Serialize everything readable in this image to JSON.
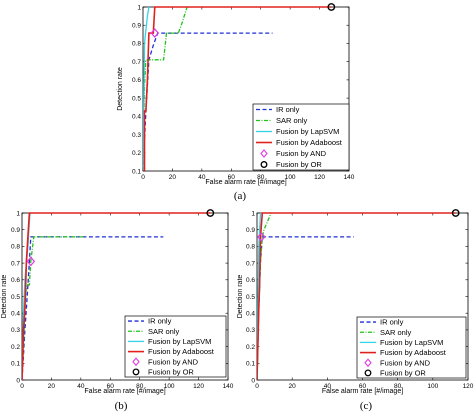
{
  "legend_labels": [
    "IR only",
    "SAR only",
    "Fusion by LapSVM",
    "Fusion by Adaboost",
    "Fusion by AND",
    "Fusion by OR"
  ],
  "colors": {
    "ir": "#1f2fd6",
    "sar": "#22c21a",
    "lapsvm": "#33d4e8",
    "adaboost": "#e0201c",
    "and": "#e03ce0",
    "or": "#000000"
  },
  "chart_data": [
    {
      "type": "line",
      "caption": "(a)",
      "xlabel": "False alarm rate [#/image]",
      "ylabel": "Detection rate",
      "xlim": [
        0,
        140
      ],
      "ylim": [
        0.1,
        1
      ],
      "x_ticks": [
        "0",
        "20",
        "40",
        "60",
        "80",
        "100",
        "120",
        "140"
      ],
      "y_ticks": [
        "0.1",
        "0.2",
        "0.3",
        "0.4",
        "0.5",
        "0.6",
        "0.7",
        "0.8",
        "0.9",
        "1"
      ],
      "grid": false,
      "legend_position": "bottom-right",
      "series": [
        {
          "name": "IR only",
          "style": "dashed",
          "x": [
            0,
            2,
            4,
            7,
            10,
            88
          ],
          "y": [
            0.1,
            0.43,
            0.71,
            0.79,
            0.857,
            0.857
          ]
        },
        {
          "name": "SAR only",
          "style": "dashdot",
          "x": [
            0,
            1,
            2,
            10,
            14,
            16,
            24,
            26,
            30
          ],
          "y": [
            0.1,
            0.57,
            0.71,
            0.71,
            0.71,
            0.857,
            0.857,
            0.9,
            1.0
          ]
        },
        {
          "name": "Fusion by LapSVM",
          "style": "solid",
          "x": [
            0,
            1,
            3,
            4
          ],
          "y": [
            0.1,
            0.8,
            0.95,
            1.0
          ]
        },
        {
          "name": "Fusion by Adaboost",
          "style": "solid",
          "x": [
            0,
            1,
            1,
            2,
            3,
            4,
            6,
            7,
            8,
            10,
            128
          ],
          "y": [
            0.1,
            0.1,
            0.43,
            0.43,
            0.6,
            0.857,
            0.857,
            0.857,
            1.0,
            1.0,
            1.0
          ]
        },
        {
          "name": "Fusion by AND",
          "marker": "diamond",
          "x": [
            8
          ],
          "y": [
            0.857
          ]
        },
        {
          "name": "Fusion by OR",
          "marker": "circle",
          "x": [
            128
          ],
          "y": [
            1.0
          ]
        }
      ]
    },
    {
      "type": "line",
      "caption": "(b)",
      "xlabel": "False alarm rate [#/image]",
      "ylabel": "Detection rate",
      "xlim": [
        0,
        140
      ],
      "ylim": [
        0,
        1
      ],
      "x_ticks": [
        "0",
        "20",
        "40",
        "60",
        "80",
        "100",
        "120",
        "140"
      ],
      "y_ticks": [
        "0",
        "0.1",
        "0.2",
        "0.3",
        "0.4",
        "0.5",
        "0.6",
        "0.7",
        "0.8",
        "0.9",
        "1"
      ],
      "grid": false,
      "legend_position": "bottom-right",
      "series": [
        {
          "name": "IR only",
          "style": "dashed",
          "x": [
            0,
            1,
            2,
            3,
            4,
            5,
            6,
            96
          ],
          "y": [
            0,
            0.15,
            0.3,
            0.43,
            0.57,
            0.71,
            0.857,
            0.857
          ]
        },
        {
          "name": "SAR only",
          "style": "dashdot",
          "x": [
            0,
            1,
            2,
            3,
            5,
            6,
            8,
            42
          ],
          "y": [
            0,
            0.2,
            0.43,
            0.57,
            0.57,
            0.71,
            0.857,
            0.857
          ]
        },
        {
          "name": "Fusion by LapSVM",
          "style": "solid",
          "x": [
            0,
            1,
            2,
            4,
            5,
            5.5
          ],
          "y": [
            0,
            0.4,
            0.6,
            0.8,
            0.95,
            1.0
          ]
        },
        {
          "name": "Fusion by Adaboost",
          "style": "solid",
          "x": [
            0,
            1,
            2,
            2.5,
            3,
            4,
            5,
            128
          ],
          "y": [
            0,
            0.29,
            0.43,
            0.57,
            0.71,
            0.857,
            1.0,
            1.0
          ]
        },
        {
          "name": "Fusion by AND",
          "marker": "diamond",
          "x": [
            6
          ],
          "y": [
            0.71
          ]
        },
        {
          "name": "Fusion by OR",
          "marker": "circle",
          "x": [
            128
          ],
          "y": [
            1.0
          ]
        }
      ]
    },
    {
      "type": "line",
      "caption": "(c)",
      "xlabel": "False alarm rate [#/image]",
      "ylabel": "Detection rate",
      "xlim": [
        0,
        120
      ],
      "ylim": [
        0,
        1
      ],
      "x_ticks": [
        "0",
        "20",
        "40",
        "60",
        "80",
        "100",
        "120"
      ],
      "y_ticks": [
        "0",
        "0.1",
        "0.2",
        "0.3",
        "0.4",
        "0.5",
        "0.6",
        "0.7",
        "0.8",
        "0.9",
        "1"
      ],
      "grid": false,
      "legend_position": "bottom-right",
      "series": [
        {
          "name": "IR only",
          "style": "dashed",
          "x": [
            0,
            1,
            2,
            3,
            55
          ],
          "y": [
            0,
            0.43,
            0.71,
            0.857,
            0.857
          ]
        },
        {
          "name": "SAR only",
          "style": "dashdot",
          "x": [
            0,
            1,
            2,
            3,
            4,
            6,
            8
          ],
          "y": [
            0,
            0.43,
            0.71,
            0.857,
            0.9,
            0.95,
            1.0
          ]
        },
        {
          "name": "Fusion by LapSVM",
          "style": "solid",
          "x": [
            0,
            1,
            2
          ],
          "y": [
            0,
            0.8,
            1.0
          ]
        },
        {
          "name": "Fusion by Adaboost",
          "style": "solid",
          "x": [
            0,
            1,
            1.5,
            2,
            3,
            113
          ],
          "y": [
            0,
            0.43,
            0.57,
            0.857,
            1.0,
            1.0
          ]
        },
        {
          "name": "Fusion by AND",
          "marker": "diamond",
          "x": [
            2.5
          ],
          "y": [
            0.857
          ]
        },
        {
          "name": "Fusion by OR",
          "marker": "circle",
          "x": [
            113
          ],
          "y": [
            1.0
          ]
        }
      ]
    }
  ]
}
